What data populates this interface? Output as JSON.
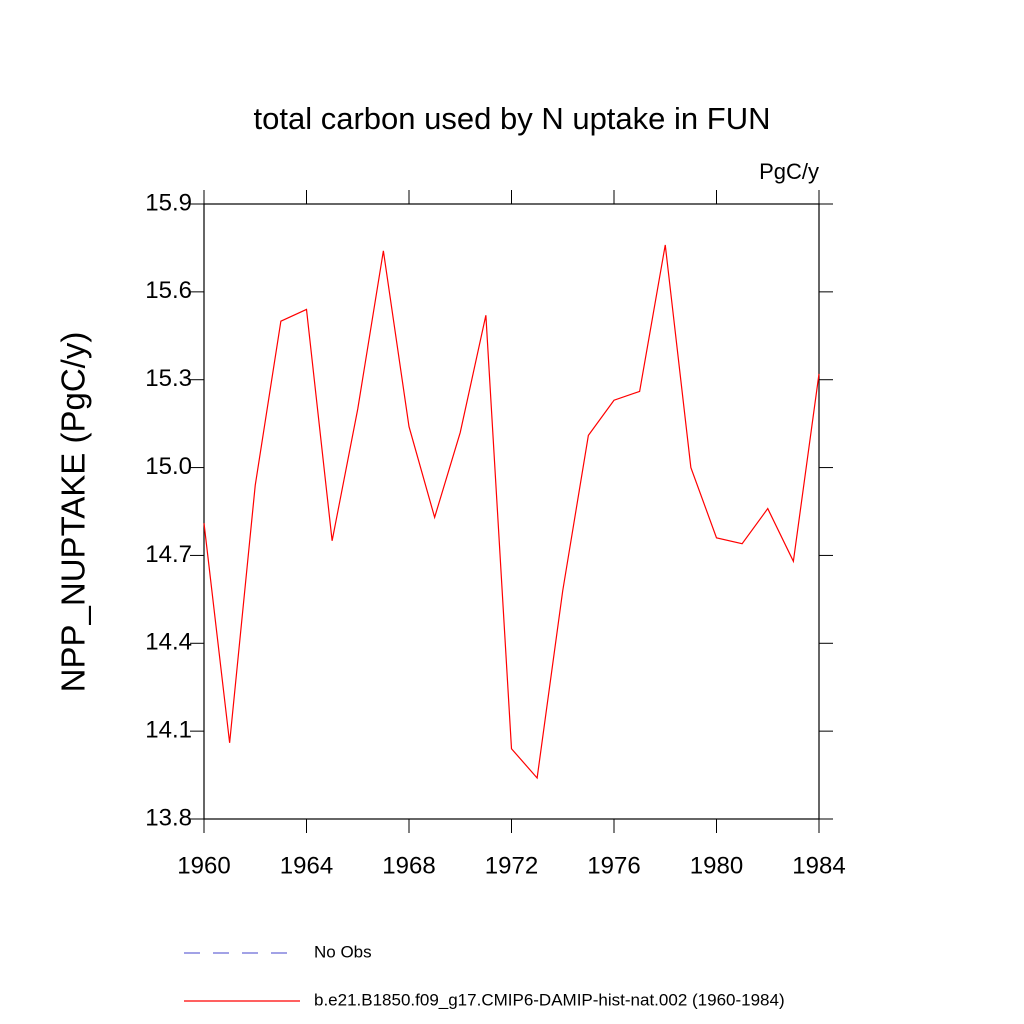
{
  "chart_data": {
    "type": "line",
    "title": "total carbon used by N uptake in FUN",
    "units_label": "PgC/y",
    "y_label": "NPP_NUPTAKE  (PgC/y)",
    "x": [
      1960,
      1961,
      1962,
      1963,
      1964,
      1965,
      1966,
      1967,
      1968,
      1969,
      1970,
      1971,
      1972,
      1973,
      1974,
      1975,
      1976,
      1977,
      1978,
      1979,
      1980,
      1981,
      1982,
      1983,
      1984
    ],
    "series": [
      {
        "name": "No Obs",
        "color": "#6a6ad8",
        "dashed": true,
        "values": [
          null,
          null,
          null,
          null,
          null,
          null,
          null,
          null,
          null,
          null,
          null,
          null,
          null,
          null,
          null,
          null,
          null,
          null,
          null,
          null,
          null,
          null,
          null,
          null,
          null
        ]
      },
      {
        "name": "b.e21.B1850.f09_g17.CMIP6-DAMIP-hist-nat.002 (1960-1984)",
        "color": "#ff0000",
        "dashed": false,
        "values": [
          14.81,
          14.06,
          14.94,
          15.5,
          15.54,
          14.75,
          15.2,
          15.74,
          15.14,
          14.83,
          15.12,
          15.52,
          14.04,
          13.94,
          14.58,
          15.11,
          15.23,
          15.26,
          15.76,
          15.0,
          14.76,
          14.74,
          14.86,
          14.68,
          15.32
        ]
      }
    ],
    "xlim": [
      1960,
      1984
    ],
    "xticks": [
      1960,
      1964,
      1968,
      1972,
      1976,
      1980,
      1984
    ],
    "ylim": [
      13.8,
      15.9
    ],
    "yticks": [
      15.9,
      15.6,
      15.3,
      {
        "value": 15,
        "label": "15.0"
      },
      14.7,
      14.4,
      14.1,
      13.8
    ]
  }
}
